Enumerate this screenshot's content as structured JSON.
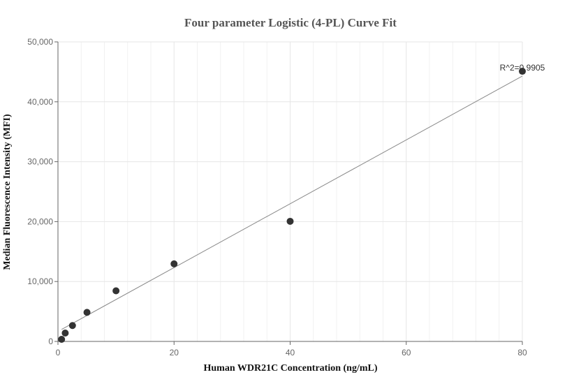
{
  "chart_data": {
    "type": "scatter",
    "title": "Four parameter Logistic (4-PL) Curve Fit",
    "xlabel": "Human WDR21C Concentration (ng/mL)",
    "ylabel": "Median Fluorescence Intensity (MFI)",
    "xlim": [
      0,
      80
    ],
    "ylim": [
      0,
      50000
    ],
    "xticks": [
      0,
      20,
      40,
      60,
      80
    ],
    "xtick_labels": [
      "0",
      "20",
      "40",
      "60",
      "80"
    ],
    "yticks": [
      0,
      10000,
      20000,
      30000,
      40000,
      50000
    ],
    "ytick_labels": [
      "0",
      "10,000",
      "20,000",
      "30,000",
      "40,000",
      "50,000"
    ],
    "grid": true,
    "series": [
      {
        "x": [
          0.625,
          1.25,
          2.5,
          5,
          10,
          20,
          40,
          80
        ],
        "y": [
          350,
          1400,
          2650,
          4850,
          8450,
          12950,
          20050,
          45100
        ]
      }
    ],
    "fit_line": {
      "x": [
        0.625,
        80
      ],
      "y": [
        2000,
        44300
      ]
    },
    "annotation": "R^2=0.9905",
    "colors": {
      "points": "#333333",
      "fit": "#888888",
      "grid": "#e6e6e6",
      "axis": "#666666"
    }
  }
}
